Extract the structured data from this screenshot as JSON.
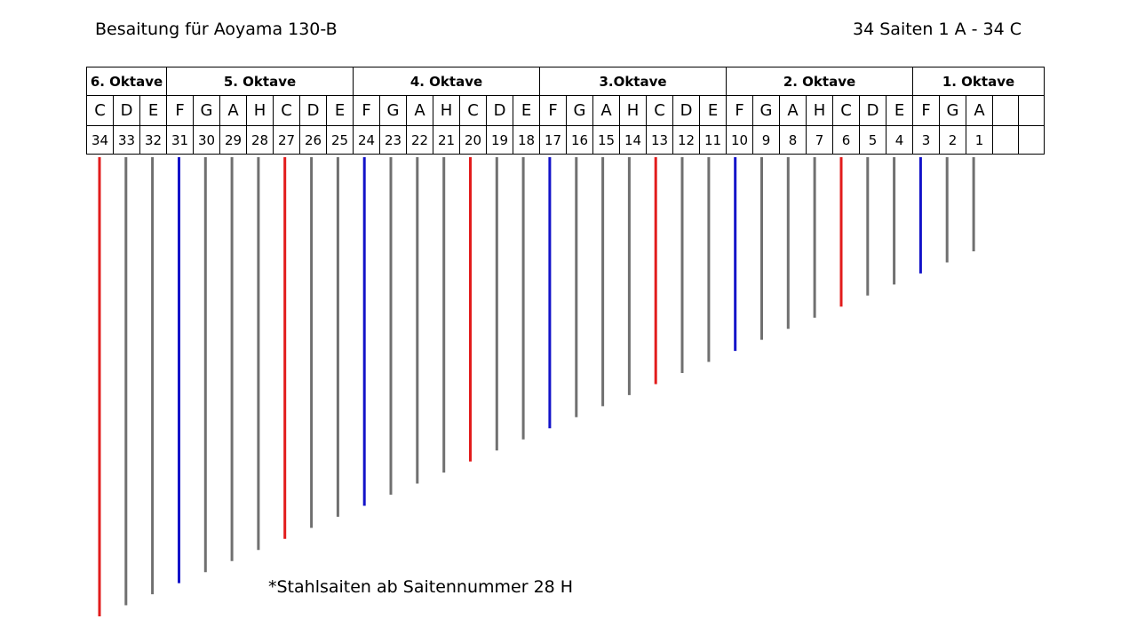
{
  "header": {
    "title": "Besaitung für Aoyama 130-B",
    "subtitle": "34 Saiten 1 A - 34 C"
  },
  "octaves": [
    {
      "label": "6. Oktave",
      "span": 3
    },
    {
      "label": "5. Oktave",
      "span": 7
    },
    {
      "label": "4. Oktave",
      "span": 7
    },
    {
      "label": "3.Oktave",
      "span": 7
    },
    {
      "label": "2. Oktave",
      "span": 7
    },
    {
      "label": "1. Oktave",
      "span": 5
    }
  ],
  "strings": [
    {
      "note": "C",
      "number": "34",
      "color": "red"
    },
    {
      "note": "D",
      "number": "33",
      "color": "gray"
    },
    {
      "note": "E",
      "number": "32",
      "color": "gray"
    },
    {
      "note": "F",
      "number": "31",
      "color": "blue"
    },
    {
      "note": "G",
      "number": "30",
      "color": "gray"
    },
    {
      "note": "A",
      "number": "29",
      "color": "gray"
    },
    {
      "note": "H",
      "number": "28",
      "color": "gray"
    },
    {
      "note": "C",
      "number": "27",
      "color": "red"
    },
    {
      "note": "D",
      "number": "26",
      "color": "gray"
    },
    {
      "note": "E",
      "number": "25",
      "color": "gray"
    },
    {
      "note": "F",
      "number": "24",
      "color": "blue"
    },
    {
      "note": "G",
      "number": "23",
      "color": "gray"
    },
    {
      "note": "A",
      "number": "22",
      "color": "gray"
    },
    {
      "note": "H",
      "number": "21",
      "color": "gray"
    },
    {
      "note": "C",
      "number": "20",
      "color": "red"
    },
    {
      "note": "D",
      "number": "19",
      "color": "gray"
    },
    {
      "note": "E",
      "number": "18",
      "color": "gray"
    },
    {
      "note": "F",
      "number": "17",
      "color": "blue"
    },
    {
      "note": "G",
      "number": "16",
      "color": "gray"
    },
    {
      "note": "A",
      "number": "15",
      "color": "gray"
    },
    {
      "note": "H",
      "number": "14",
      "color": "gray"
    },
    {
      "note": "C",
      "number": "13",
      "color": "red"
    },
    {
      "note": "D",
      "number": "12",
      "color": "gray"
    },
    {
      "note": "E",
      "number": "11",
      "color": "gray"
    },
    {
      "note": "F",
      "number": "10",
      "color": "blue"
    },
    {
      "note": "G",
      "number": "9",
      "color": "gray"
    },
    {
      "note": "A",
      "number": "8",
      "color": "gray"
    },
    {
      "note": "H",
      "number": "7",
      "color": "gray"
    },
    {
      "note": "C",
      "number": "6",
      "color": "red"
    },
    {
      "note": "D",
      "number": "5",
      "color": "gray"
    },
    {
      "note": "E",
      "number": "4",
      "color": "gray"
    },
    {
      "note": "F",
      "number": "3",
      "color": "blue"
    },
    {
      "note": "G",
      "number": "2",
      "color": "gray"
    },
    {
      "note": "A",
      "number": "1",
      "color": "gray"
    },
    {
      "note": "",
      "number": "",
      "color": ""
    },
    {
      "note": "",
      "number": "",
      "color": ""
    }
  ],
  "colors": {
    "red": "#e21c1c",
    "blue": "#1313c9",
    "gray": "#707070"
  },
  "footnote": "*Stahlsaiten ab Saitennummer 28 H"
}
